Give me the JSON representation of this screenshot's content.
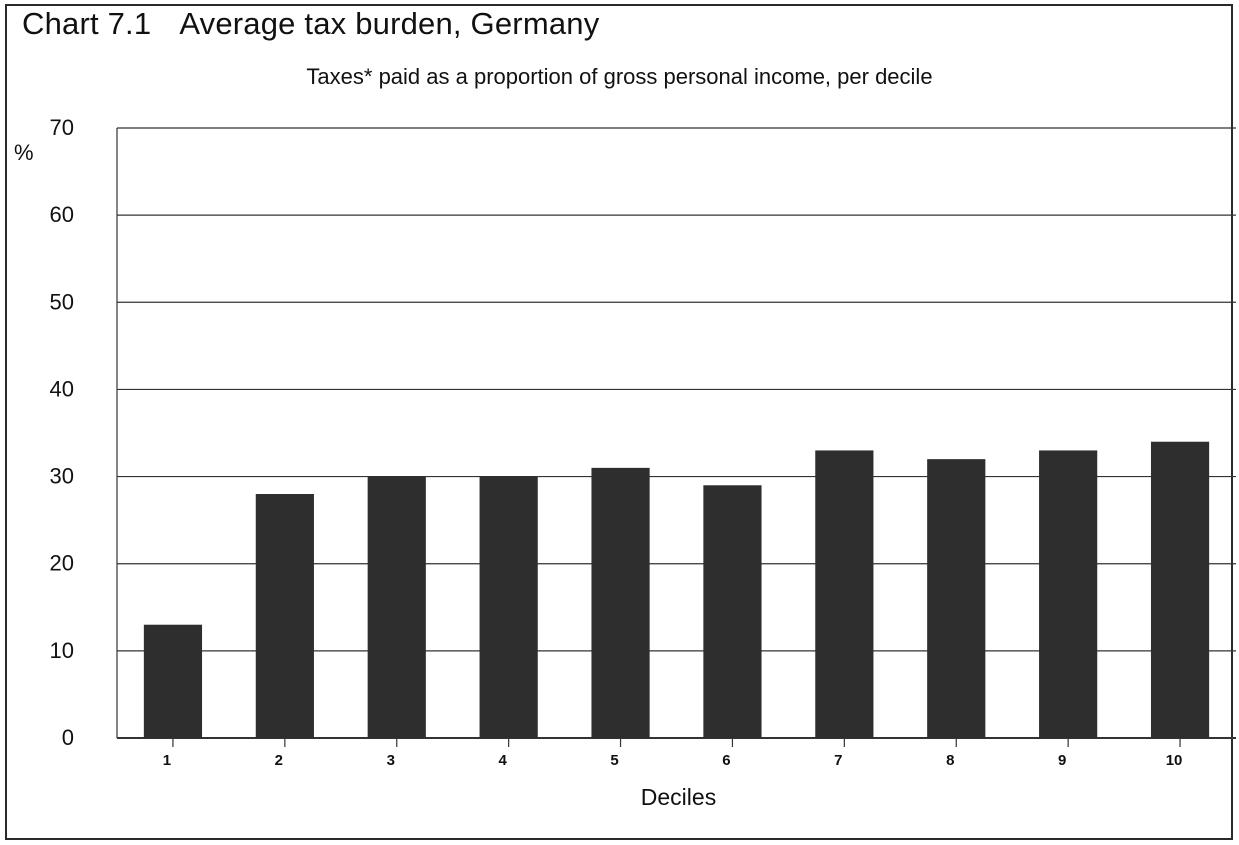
{
  "header": {
    "chart_number": "Chart 7.1",
    "title": "Average tax burden, Germany",
    "subtitle": "Taxes* paid as a proportion of gross personal income, per decile"
  },
  "colors": {
    "bar": "#2e2e2e",
    "grid": "#333333",
    "frame": "#2a2a2a",
    "text": "#111111"
  },
  "chart_data": {
    "type": "bar",
    "title": "Average tax burden, Germany",
    "subtitle": "Taxes* paid as a proportion of gross personal income, per decile",
    "categories": [
      "1",
      "2",
      "3",
      "4",
      "5",
      "6",
      "7",
      "8",
      "9",
      "10"
    ],
    "values": [
      13,
      28,
      30,
      30,
      31,
      29,
      33,
      32,
      33,
      34
    ],
    "xlabel": "Deciles",
    "ylabel": "%",
    "ylim": [
      0,
      70
    ],
    "yticks": [
      0,
      10,
      20,
      30,
      40,
      50,
      60,
      70
    ],
    "grid": true,
    "legend": "none"
  }
}
